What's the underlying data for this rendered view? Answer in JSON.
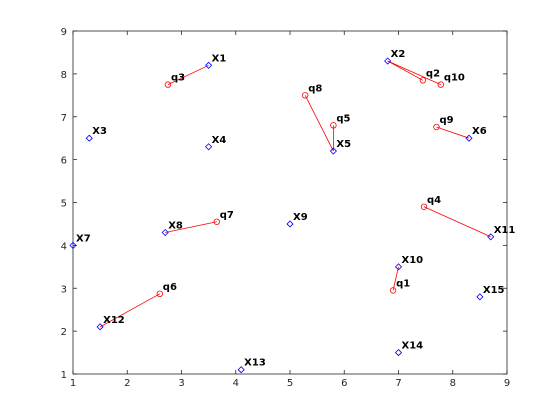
{
  "chart_data": {
    "type": "scatter",
    "xlim": [
      1,
      9
    ],
    "ylim": [
      1,
      9
    ],
    "xticks": [
      1,
      2,
      3,
      4,
      5,
      6,
      7,
      8,
      9
    ],
    "yticks": [
      1,
      2,
      3,
      4,
      5,
      6,
      7,
      8,
      9
    ],
    "series": [
      {
        "color": "#0000ff",
        "marker": "diamond",
        "labels": [
          "X1",
          "X2",
          "X3",
          "X4",
          "X5",
          "X6",
          "X7",
          "X8",
          "X9",
          "X10",
          "X11",
          "X12",
          "X13",
          "X14",
          "X15"
        ],
        "x": [
          3.5,
          6.8,
          1.3,
          3.5,
          5.8,
          8.3,
          1.0,
          2.7,
          5.0,
          7.0,
          8.7,
          1.5,
          4.1,
          7.0,
          8.5
        ],
        "y": [
          8.2,
          8.3,
          6.5,
          6.3,
          6.2,
          6.5,
          4.0,
          4.3,
          4.5,
          3.5,
          4.2,
          2.1,
          1.1,
          1.5,
          2.8
        ]
      },
      {
        "color": "#ff0000",
        "marker": "circle",
        "labels": [
          "q1",
          "q2",
          "q3",
          "q4",
          "q5",
          "q6",
          "q7",
          "q8",
          "q9",
          "q10"
        ],
        "x": [
          6.9,
          7.45,
          2.75,
          7.47,
          5.8,
          2.6,
          3.65,
          5.28,
          7.7,
          7.78
        ],
        "y": [
          2.95,
          7.85,
          7.75,
          4.9,
          6.8,
          2.87,
          4.55,
          7.5,
          6.76,
          7.75
        ]
      }
    ]
  }
}
